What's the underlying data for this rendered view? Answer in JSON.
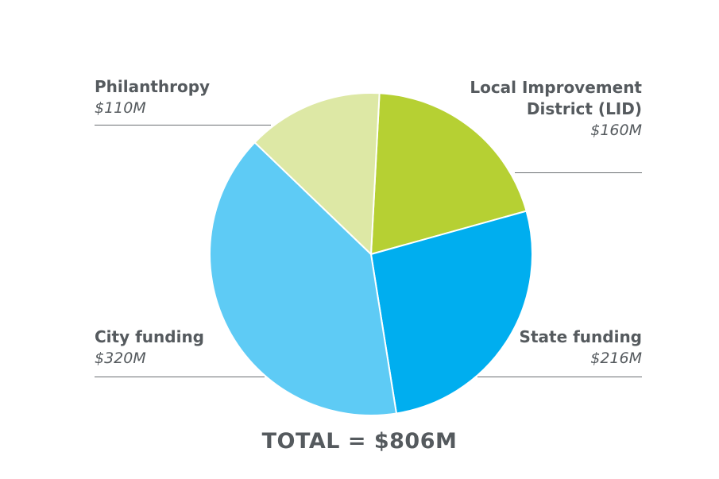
{
  "chart_data": {
    "type": "pie",
    "title": "",
    "slices": [
      {
        "label": "Local Improvement District (LID)",
        "value": 160,
        "value_label": "$160M",
        "color": "#b6d033"
      },
      {
        "label": "State funding",
        "value": 216,
        "value_label": "$216M",
        "color": "#00aeef"
      },
      {
        "label": "City funding",
        "value": 320,
        "value_label": "$320M",
        "color": "#5ecbf5"
      },
      {
        "label": "Philanthropy",
        "value": 110,
        "value_label": "$110M",
        "color": "#dde8a5"
      }
    ],
    "total_label": "TOTAL = $806M"
  }
}
